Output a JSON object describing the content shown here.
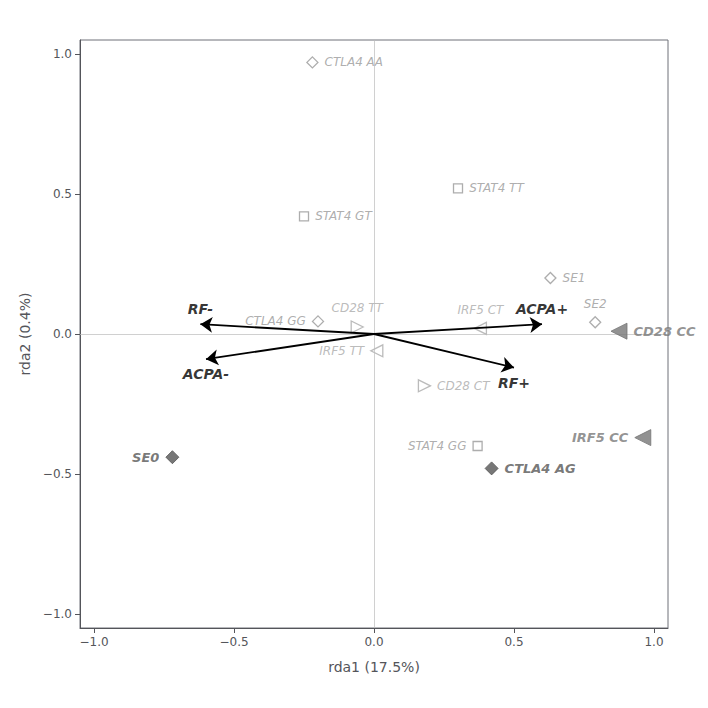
{
  "chart_data": {
    "type": "scatter",
    "xlabel": "rda1 (17.5%)",
    "ylabel": "rda2 (0.4%)",
    "xlim": [
      -1.05,
      1.05
    ],
    "ylim": [
      -1.05,
      1.05
    ],
    "xticks": [
      {
        "value": -1.0,
        "label": "−1.0"
      },
      {
        "value": -0.5,
        "label": "−0.5"
      },
      {
        "value": 0.0,
        "label": "0.0"
      },
      {
        "value": 0.5,
        "label": "0.5"
      },
      {
        "value": 1.0,
        "label": "1.0"
      }
    ],
    "yticks": [
      {
        "value": -1.0,
        "label": "−1.0"
      },
      {
        "value": -0.5,
        "label": "−0.5"
      },
      {
        "value": 0.0,
        "label": "0.0"
      },
      {
        "value": 0.5,
        "label": "0.5"
      },
      {
        "value": 1.0,
        "label": "1.0"
      }
    ],
    "grid": false,
    "hlines": [
      0
    ],
    "vlines": [
      0
    ],
    "arrows": [
      {
        "label": "RF-",
        "x0": 0.0,
        "y0": 0.0,
        "x1": -0.62,
        "y1": 0.035
      },
      {
        "label": "ACPA-",
        "x0": 0.0,
        "y0": 0.0,
        "x1": -0.6,
        "y1": -0.09
      },
      {
        "label": "ACPA+",
        "x0": 0.0,
        "y0": 0.0,
        "x1": 0.6,
        "y1": 0.035
      },
      {
        "label": "RF+",
        "x0": 0.0,
        "y0": 0.0,
        "x1": 0.5,
        "y1": -0.12
      }
    ],
    "series": [
      {
        "marker": "diamond_open",
        "color": "#999999",
        "points": [
          {
            "x": -0.22,
            "y": 0.97,
            "label": "CTLA4 AA"
          },
          {
            "x": -0.2,
            "y": 0.045,
            "label": "CTLA4 GG"
          },
          {
            "x": 0.63,
            "y": 0.2,
            "label": "SE1"
          },
          {
            "x": 0.79,
            "y": 0.042,
            "label": "SE2"
          }
        ]
      },
      {
        "marker": "square_open",
        "color": "#999999",
        "points": [
          {
            "x": -0.25,
            "y": 0.42,
            "label": "STAT4 GT"
          },
          {
            "x": 0.3,
            "y": 0.52,
            "label": "STAT4 TT"
          },
          {
            "x": 0.37,
            "y": -0.4,
            "label": "STAT4 GG"
          }
        ]
      },
      {
        "marker": "triangle_right_open",
        "color": "#aaaaaa",
        "points": [
          {
            "x": -0.06,
            "y": 0.025,
            "label": "CD28 TT"
          },
          {
            "x": 0.18,
            "y": -0.185,
            "label": "CD28 CT"
          }
        ]
      },
      {
        "marker": "triangle_left_open",
        "color": "#aaaaaa",
        "points": [
          {
            "x": 0.38,
            "y": 0.02,
            "label": "IRF5 CT"
          },
          {
            "x": 0.01,
            "y": -0.06,
            "label": "IRF5 TT"
          }
        ]
      },
      {
        "marker": "triangle_left_filled",
        "color": "#777777",
        "points": [
          {
            "x": 0.875,
            "y": 0.01,
            "label": "CD28 CC"
          },
          {
            "x": 0.96,
            "y": -0.37,
            "label": "IRF5 CC"
          }
        ]
      },
      {
        "marker": "diamond_filled",
        "color": "#555555",
        "points": [
          {
            "x": -0.72,
            "y": -0.44,
            "label": "SE0"
          },
          {
            "x": 0.42,
            "y": -0.48,
            "label": "CTLA4 AG"
          }
        ]
      }
    ]
  }
}
